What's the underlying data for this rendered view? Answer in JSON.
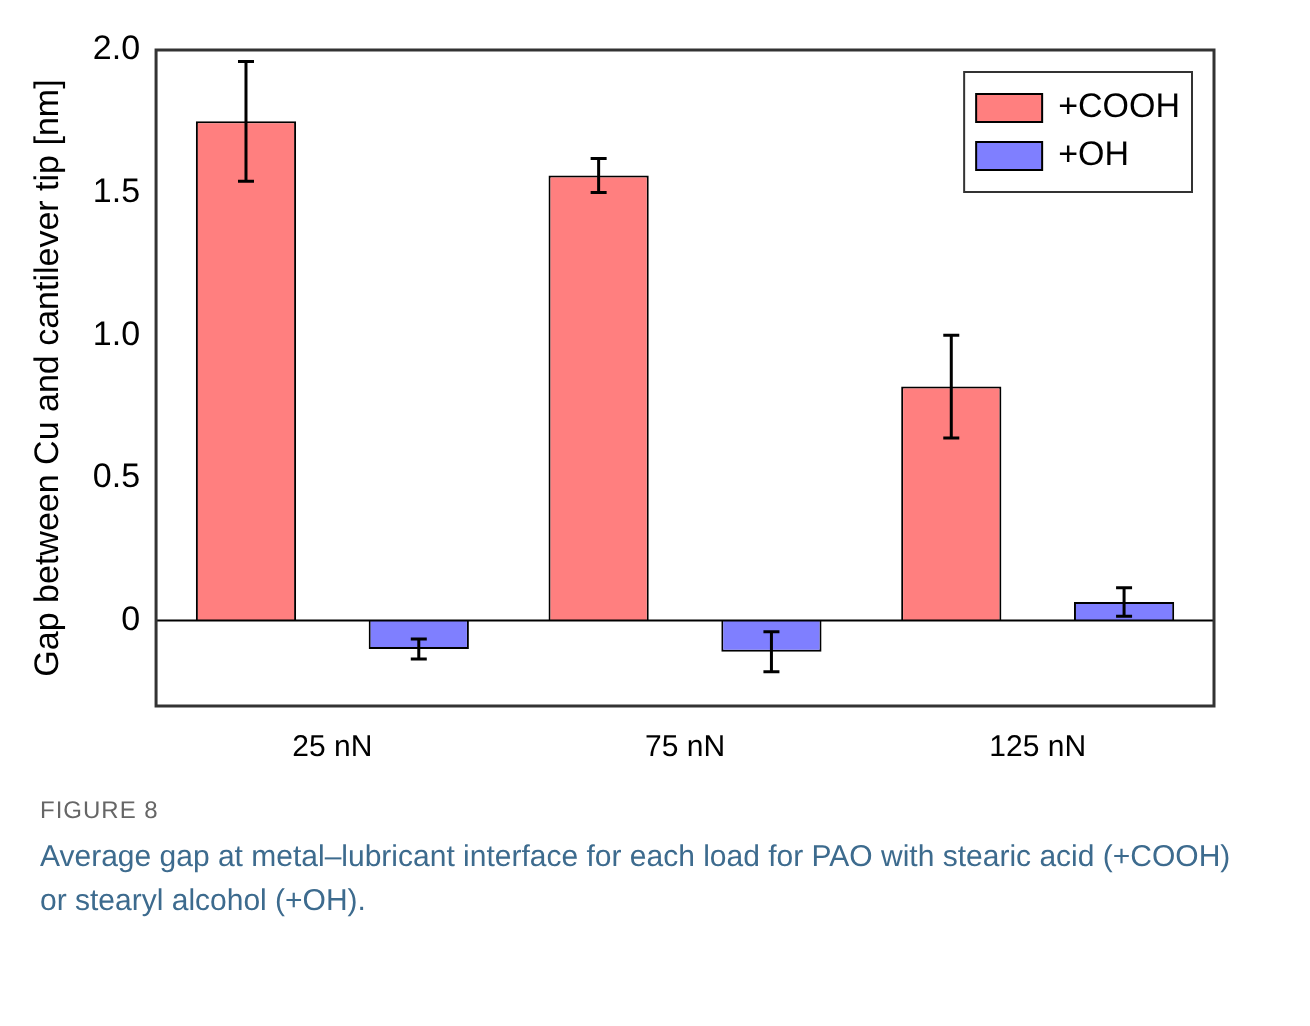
{
  "chart_data": {
    "type": "bar",
    "ylabel": "Gap between Cu and cantilever tip [nm]",
    "categories": [
      "25 nN",
      "75 nN",
      "125 nN"
    ],
    "series": [
      {
        "name": "+COOH",
        "color": "#ff7f7f",
        "values": [
          1.75,
          1.56,
          0.82
        ],
        "errors": [
          0.21,
          0.06,
          0.18
        ]
      },
      {
        "name": "+OH",
        "color": "#7f7fff",
        "values": [
          -0.1,
          -0.11,
          0.065
        ],
        "errors": [
          0.035,
          0.07,
          0.05
        ]
      }
    ],
    "ylim": [
      -0.3,
      2.0
    ],
    "yticks": [
      {
        "value": 0,
        "label": "0"
      },
      0.5,
      {
        "value": 1,
        "label": "1.0"
      },
      1.5,
      {
        "value": 2,
        "label": "2.0"
      }
    ],
    "ref_lines": [
      {
        "axis": "y",
        "value": 0,
        "color": "#000000"
      }
    ],
    "grid": false,
    "legend": "top right",
    "annotations": [
      "FIGURE 8",
      "Average gap at metal–lubricant interface for each load for PAO with stearic acid (+COOH) or stearyl alcohol (+OH)."
    ]
  }
}
